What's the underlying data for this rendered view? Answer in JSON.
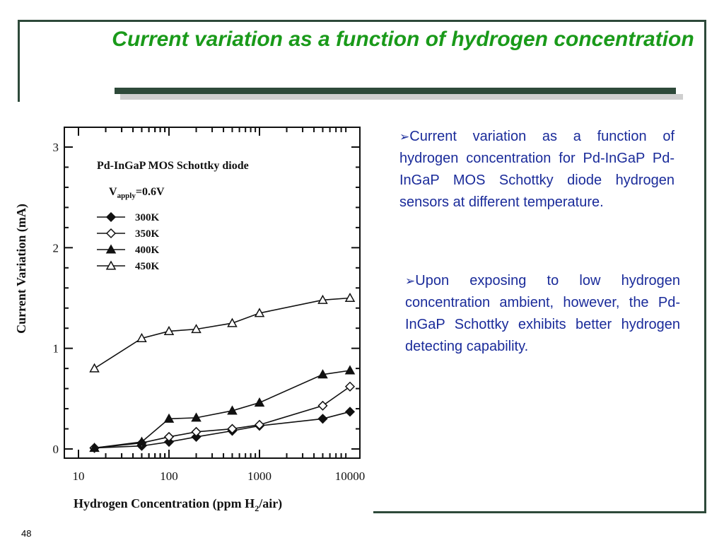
{
  "slide": {
    "title": "Current variation as a function of hydrogen concentration",
    "page_number": "48",
    "title_color": "#1a9a1a",
    "frame_color": "#2e4a3a",
    "text_color": "#1a2b9a"
  },
  "bullets": [
    {
      "icon": "arrow-bullet-icon",
      "marker": "➢",
      "text": "Current variation as a function of hydrogen concentration for Pd-InGaP Pd-InGaP MOS Schottky diode hydrogen sensors at different temperature."
    },
    {
      "icon": "arrow-bullet-icon",
      "marker": "➢",
      "text": "Upon exposing to low hydrogen concentration ambient, however, the Pd-InGaP Schottky exhibits better hydrogen detecting capability."
    }
  ],
  "chart_data": {
    "type": "line",
    "title": "Pd-InGaP MOS Schottky diode",
    "annotation_prefix": "V",
    "annotation_sub": "apply",
    "annotation_suffix": "=0.6V",
    "xlabel_prefix": "Hydrogen Concentration (ppm H",
    "xlabel_sub": "2",
    "xlabel_suffix": "/air)",
    "ylabel": "Current Variation (mA)",
    "x_scale": "log",
    "xlim": [
      10,
      10000
    ],
    "ylim": [
      0,
      3
    ],
    "x_ticks": [
      "10",
      "100",
      "1000",
      "10000"
    ],
    "y_ticks": [
      "0",
      "1",
      "2",
      "3"
    ],
    "legend_position": "top-left",
    "grid": false,
    "x": [
      15,
      50,
      100,
      200,
      500,
      1000,
      5000,
      10000
    ],
    "series": [
      {
        "name": "300K",
        "marker": "filled-diamond",
        "values": [
          0.01,
          0.03,
          0.07,
          0.12,
          0.18,
          0.23,
          0.3,
          0.37
        ]
      },
      {
        "name": "350K",
        "marker": "open-diamond",
        "values": [
          0.01,
          0.06,
          0.12,
          0.17,
          0.2,
          0.24,
          0.43,
          0.62
        ]
      },
      {
        "name": "400K",
        "marker": "filled-triangle",
        "values": [
          0.01,
          0.07,
          0.3,
          0.31,
          0.38,
          0.46,
          0.74,
          0.78
        ]
      },
      {
        "name": "450K",
        "marker": "open-triangle",
        "values": [
          0.8,
          1.1,
          1.17,
          1.19,
          1.25,
          1.35,
          1.48,
          1.5
        ]
      }
    ]
  }
}
